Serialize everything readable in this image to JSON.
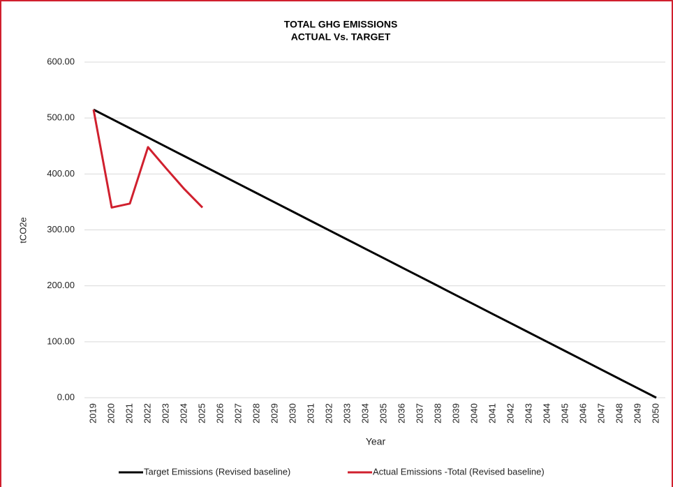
{
  "chart_data": {
    "type": "line",
    "title": "TOTAL GHG EMISSIONS",
    "subtitle": "ACTUAL Vs. TARGET",
    "x_label": "Year",
    "y_label": "tCO2e",
    "categories": [
      "2019",
      "2020",
      "2021",
      "2022",
      "2023",
      "2024",
      "2025",
      "2026",
      "2027",
      "2028",
      "2029",
      "2030",
      "2031",
      "2032",
      "2033",
      "2034",
      "2035",
      "2036",
      "2037",
      "2038",
      "2039",
      "2040",
      "2041",
      "2042",
      "2043",
      "2044",
      "2045",
      "2046",
      "2047",
      "2048",
      "2049",
      "2050"
    ],
    "series": [
      {
        "name": "Target Emissions (Revised baseline)",
        "color": "#000000",
        "values": [
          515,
          498.4,
          481.8,
          465.2,
          448.5,
          431.9,
          415.3,
          398.7,
          382.1,
          365.5,
          348.9,
          332.3,
          315.6,
          299.0,
          282.4,
          265.8,
          249.2,
          232.6,
          216.0,
          199.4,
          182.7,
          166.1,
          149.5,
          132.9,
          116.3,
          99.7,
          83.1,
          66.5,
          49.8,
          33.2,
          16.6,
          0
        ]
      },
      {
        "name": "Actual Emissions -Total (Revised baseline)",
        "color": "#d0202e",
        "values": [
          515,
          340,
          347,
          448,
          410,
          373,
          340,
          null,
          null,
          null,
          null,
          null,
          null,
          null,
          null,
          null,
          null,
          null,
          null,
          null,
          null,
          null,
          null,
          null,
          null,
          null,
          null,
          null,
          null,
          null,
          null,
          null
        ]
      }
    ],
    "ylim": [
      0,
      600
    ],
    "yticks": [
      {
        "value": 0,
        "label": "0.00"
      },
      {
        "value": 100,
        "label": "100.00"
      },
      {
        "value": 200,
        "label": "200.00"
      },
      {
        "value": 300,
        "label": "300.00"
      },
      {
        "value": 400,
        "label": "400.00"
      },
      {
        "value": 500,
        "label": "500.00"
      },
      {
        "value": 600,
        "label": "600.00"
      }
    ],
    "grid": true,
    "legend": "bottom"
  }
}
